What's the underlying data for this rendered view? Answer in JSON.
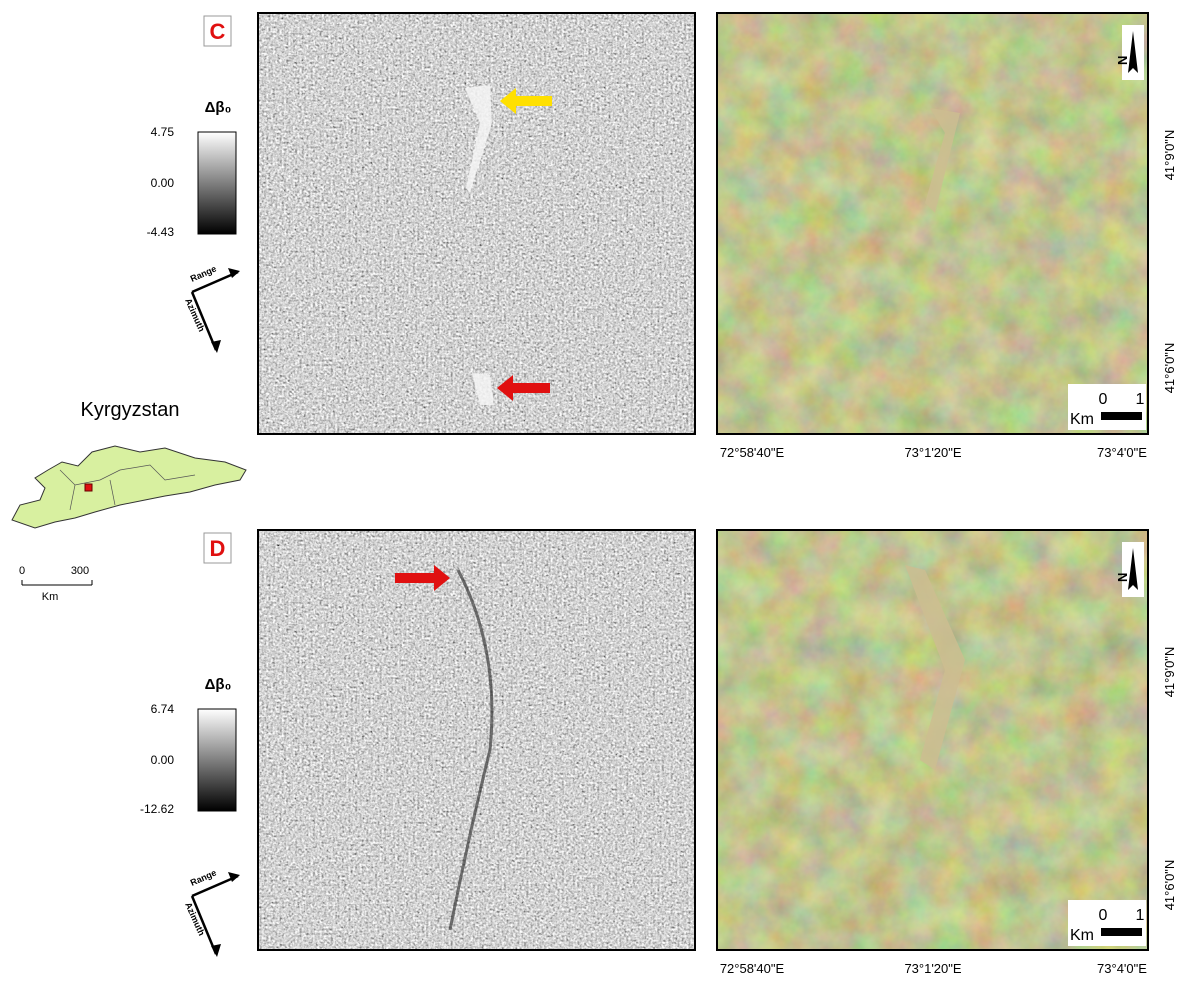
{
  "panels": [
    {
      "label": "C",
      "legend": {
        "title": "Δβ₀",
        "max": "4.75",
        "mid": "0.00",
        "min": "-4.43"
      },
      "direction": {
        "range": "Range",
        "azimuth": "Azimuth"
      },
      "north": "N",
      "scale_bar": {
        "start": "0",
        "end": "1",
        "unit": "Km"
      },
      "x_labels": [
        "72°58'40\"E",
        "73°1'20\"E",
        "73°4'0\"E"
      ],
      "y_labels": [
        "41°9'0\"N",
        "41°6'0\"N"
      ]
    },
    {
      "label": "D",
      "legend": {
        "title": "Δβ₀",
        "max": "6.74",
        "mid": "0.00",
        "min": "-12.62"
      },
      "direction": {
        "range": "Range",
        "azimuth": "Azimuth"
      },
      "north": "N",
      "scale_bar": {
        "start": "0",
        "end": "1",
        "unit": "Km"
      },
      "x_labels": [
        "72°58'40\"E",
        "73°1'20\"E",
        "73°4'0\"E"
      ],
      "y_labels": [
        "41°9'0\"N",
        "41°6'0\"N"
      ]
    }
  ],
  "inset": {
    "title": "Kyrgyzstan",
    "scale": {
      "start": "0",
      "end": "300",
      "unit": "Km"
    }
  }
}
